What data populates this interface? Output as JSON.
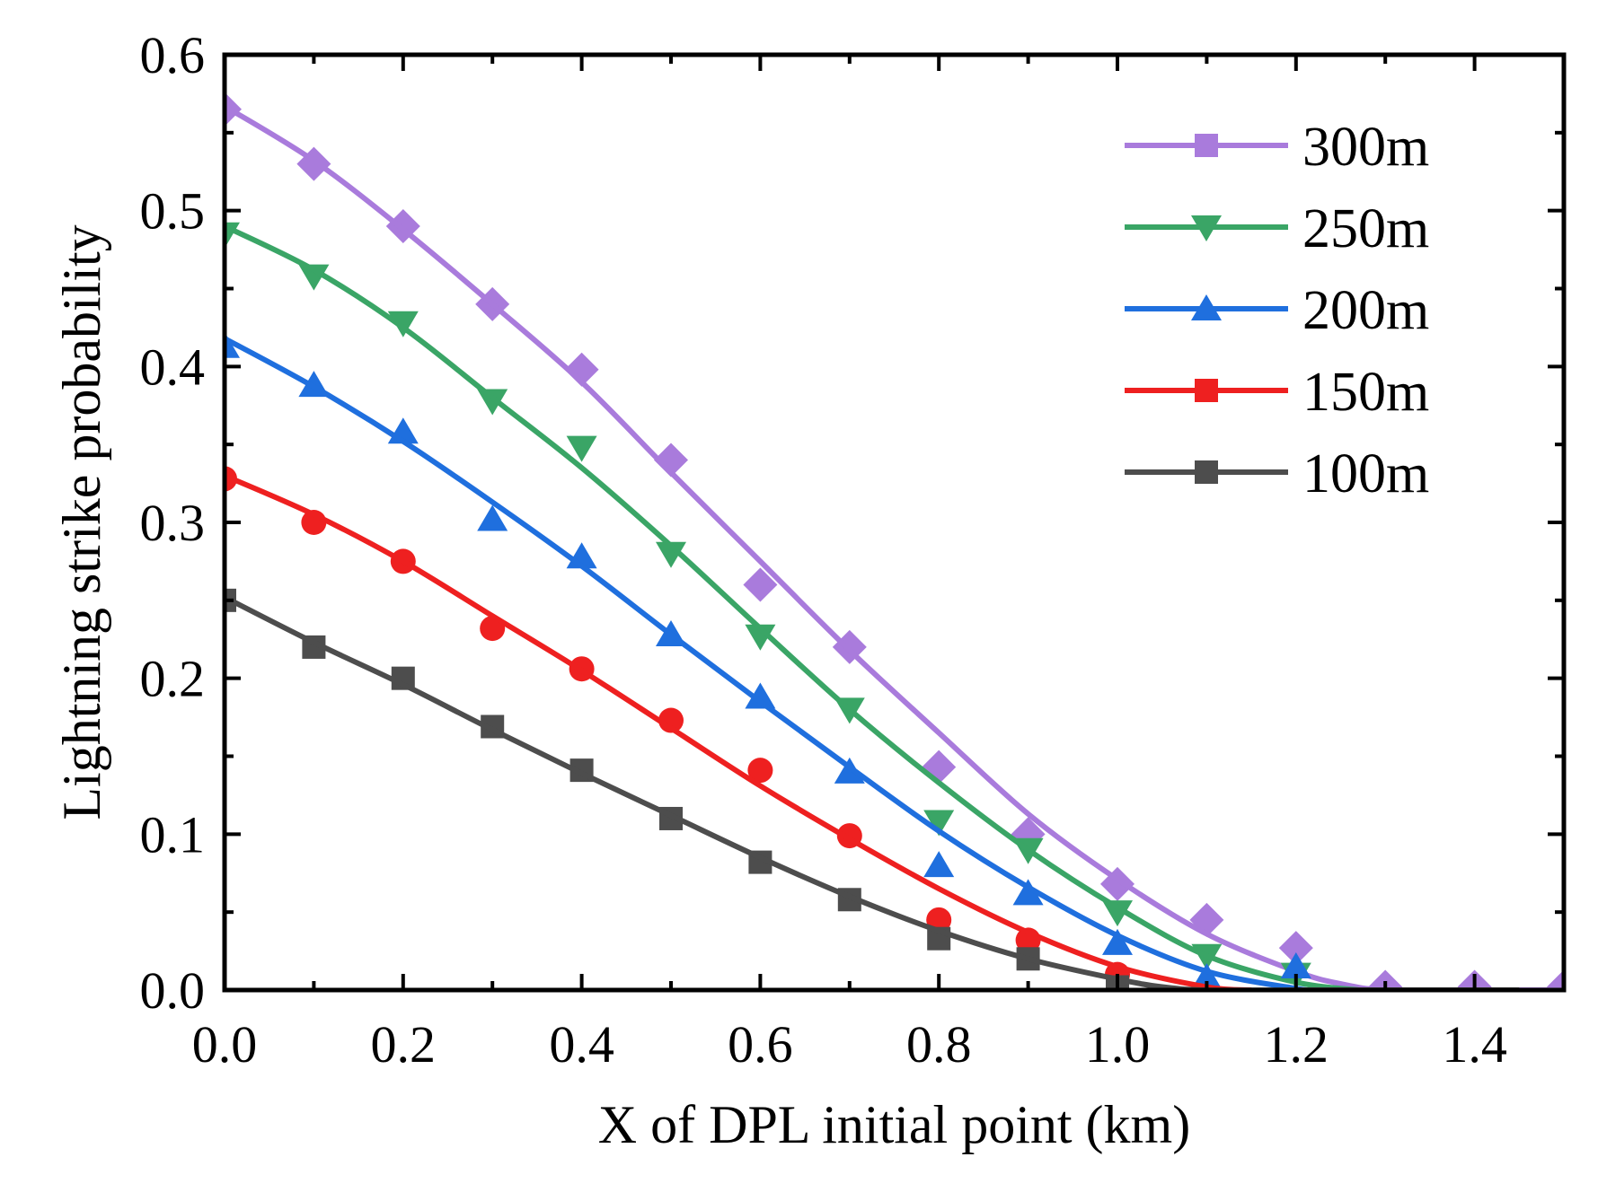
{
  "chart_data": {
    "type": "line",
    "title": "",
    "xlabel": "X of DPL initial point (km)",
    "ylabel": "Lightning strike probability",
    "xlim": [
      0.0,
      1.5
    ],
    "ylim": [
      0.0,
      0.6
    ],
    "xticks": [
      0.0,
      0.2,
      0.4,
      0.6,
      0.8,
      1.0,
      1.2,
      1.4
    ],
    "xtick_labels": [
      "0.0",
      "0.2",
      "0.4",
      "0.6",
      "0.8",
      "1.0",
      "1.2",
      "1.4"
    ],
    "yticks": [
      0.0,
      0.1,
      0.2,
      0.3,
      0.4,
      0.5,
      0.6
    ],
    "ytick_labels": [
      "0.0",
      "0.1",
      "0.2",
      "0.3",
      "0.4",
      "0.5",
      "0.6"
    ],
    "grid": false,
    "legend_position": "top-right",
    "series": [
      {
        "name": "300m",
        "color": "#a97bdc",
        "marker": "diamond",
        "legend_marker": "square",
        "x": [
          0.0,
          0.1,
          0.2,
          0.3,
          0.4,
          0.5,
          0.6,
          0.7,
          0.8,
          0.9,
          1.0,
          1.1,
          1.2,
          1.3,
          1.4,
          1.5
        ],
        "values": [
          0.565,
          0.53,
          0.49,
          0.44,
          0.398,
          0.34,
          0.26,
          0.22,
          0.143,
          0.1,
          0.068,
          0.045,
          0.027,
          0.002,
          0.002,
          0.002
        ],
        "fit_x": [
          0.0,
          0.1,
          0.2,
          0.3,
          0.4,
          0.5,
          0.6,
          0.7,
          0.8,
          0.9,
          1.0,
          1.1,
          1.2,
          1.25,
          1.3,
          1.4,
          1.5
        ],
        "fit_y": [
          0.567,
          0.532,
          0.488,
          0.44,
          0.39,
          0.332,
          0.275,
          0.218,
          0.165,
          0.113,
          0.071,
          0.036,
          0.012,
          0.004,
          0.0,
          0.0,
          0.0
        ]
      },
      {
        "name": "250m",
        "color": "#3aa566",
        "marker": "triangle-down",
        "legend_marker": "triangle-down",
        "x": [
          0.0,
          0.1,
          0.2,
          0.3,
          0.4,
          0.5,
          0.6,
          0.7,
          0.8,
          0.9,
          1.0,
          1.1,
          1.2
        ],
        "values": [
          0.485,
          0.458,
          0.428,
          0.378,
          0.348,
          0.28,
          0.227,
          0.18,
          0.108,
          0.09,
          0.05,
          0.022,
          0.01
        ],
        "fit_x": [
          0.0,
          0.1,
          0.2,
          0.3,
          0.4,
          0.5,
          0.6,
          0.7,
          0.8,
          0.9,
          1.0,
          1.1,
          1.2,
          1.27
        ],
        "fit_y": [
          0.49,
          0.462,
          0.425,
          0.38,
          0.335,
          0.285,
          0.232,
          0.18,
          0.133,
          0.09,
          0.053,
          0.022,
          0.005,
          0.0
        ]
      },
      {
        "name": "200m",
        "color": "#1f6fde",
        "marker": "triangle-up",
        "legend_marker": "triangle-up",
        "x": [
          0.0,
          0.1,
          0.2,
          0.3,
          0.4,
          0.5,
          0.6,
          0.7,
          0.8,
          0.9,
          1.0,
          1.1,
          1.2
        ],
        "values": [
          0.413,
          0.388,
          0.358,
          0.302,
          0.278,
          0.228,
          0.188,
          0.14,
          0.08,
          0.062,
          0.03,
          0.008,
          0.015
        ],
        "fit_x": [
          0.0,
          0.1,
          0.2,
          0.3,
          0.4,
          0.5,
          0.6,
          0.7,
          0.8,
          0.9,
          1.0,
          1.1,
          1.2,
          1.22
        ],
        "fit_y": [
          0.418,
          0.387,
          0.352,
          0.313,
          0.272,
          0.228,
          0.185,
          0.143,
          0.102,
          0.066,
          0.035,
          0.012,
          0.001,
          0.0
        ]
      },
      {
        "name": "150m",
        "color": "#ee2020",
        "marker": "circle",
        "legend_marker": "square",
        "x": [
          0.0,
          0.1,
          0.2,
          0.3,
          0.4,
          0.5,
          0.6,
          0.7,
          0.8,
          0.9,
          1.0
        ],
        "values": [
          0.328,
          0.3,
          0.275,
          0.232,
          0.206,
          0.173,
          0.141,
          0.099,
          0.045,
          0.032,
          0.01
        ],
        "fit_x": [
          0.0,
          0.1,
          0.2,
          0.3,
          0.4,
          0.5,
          0.6,
          0.7,
          0.8,
          0.9,
          1.0,
          1.1,
          1.15
        ],
        "fit_y": [
          0.33,
          0.305,
          0.275,
          0.24,
          0.205,
          0.168,
          0.131,
          0.097,
          0.065,
          0.037,
          0.015,
          0.002,
          0.0
        ]
      },
      {
        "name": "100m",
        "color": "#4d4d4d",
        "marker": "square",
        "legend_marker": "square",
        "x": [
          0.0,
          0.1,
          0.2,
          0.3,
          0.4,
          0.5,
          0.6,
          0.7,
          0.8,
          0.9,
          1.0
        ],
        "values": [
          0.25,
          0.22,
          0.2,
          0.169,
          0.141,
          0.11,
          0.082,
          0.058,
          0.033,
          0.02,
          0.002
        ],
        "fit_x": [
          0.0,
          0.1,
          0.2,
          0.3,
          0.4,
          0.5,
          0.6,
          0.7,
          0.8,
          0.9,
          1.0,
          1.05,
          1.1,
          1.2,
          1.3,
          1.4,
          1.45
        ],
        "fit_y": [
          0.252,
          0.223,
          0.196,
          0.167,
          0.139,
          0.112,
          0.085,
          0.06,
          0.038,
          0.02,
          0.007,
          0.002,
          0.0,
          0.0,
          0.0,
          0.0,
          0.0
        ]
      }
    ]
  }
}
